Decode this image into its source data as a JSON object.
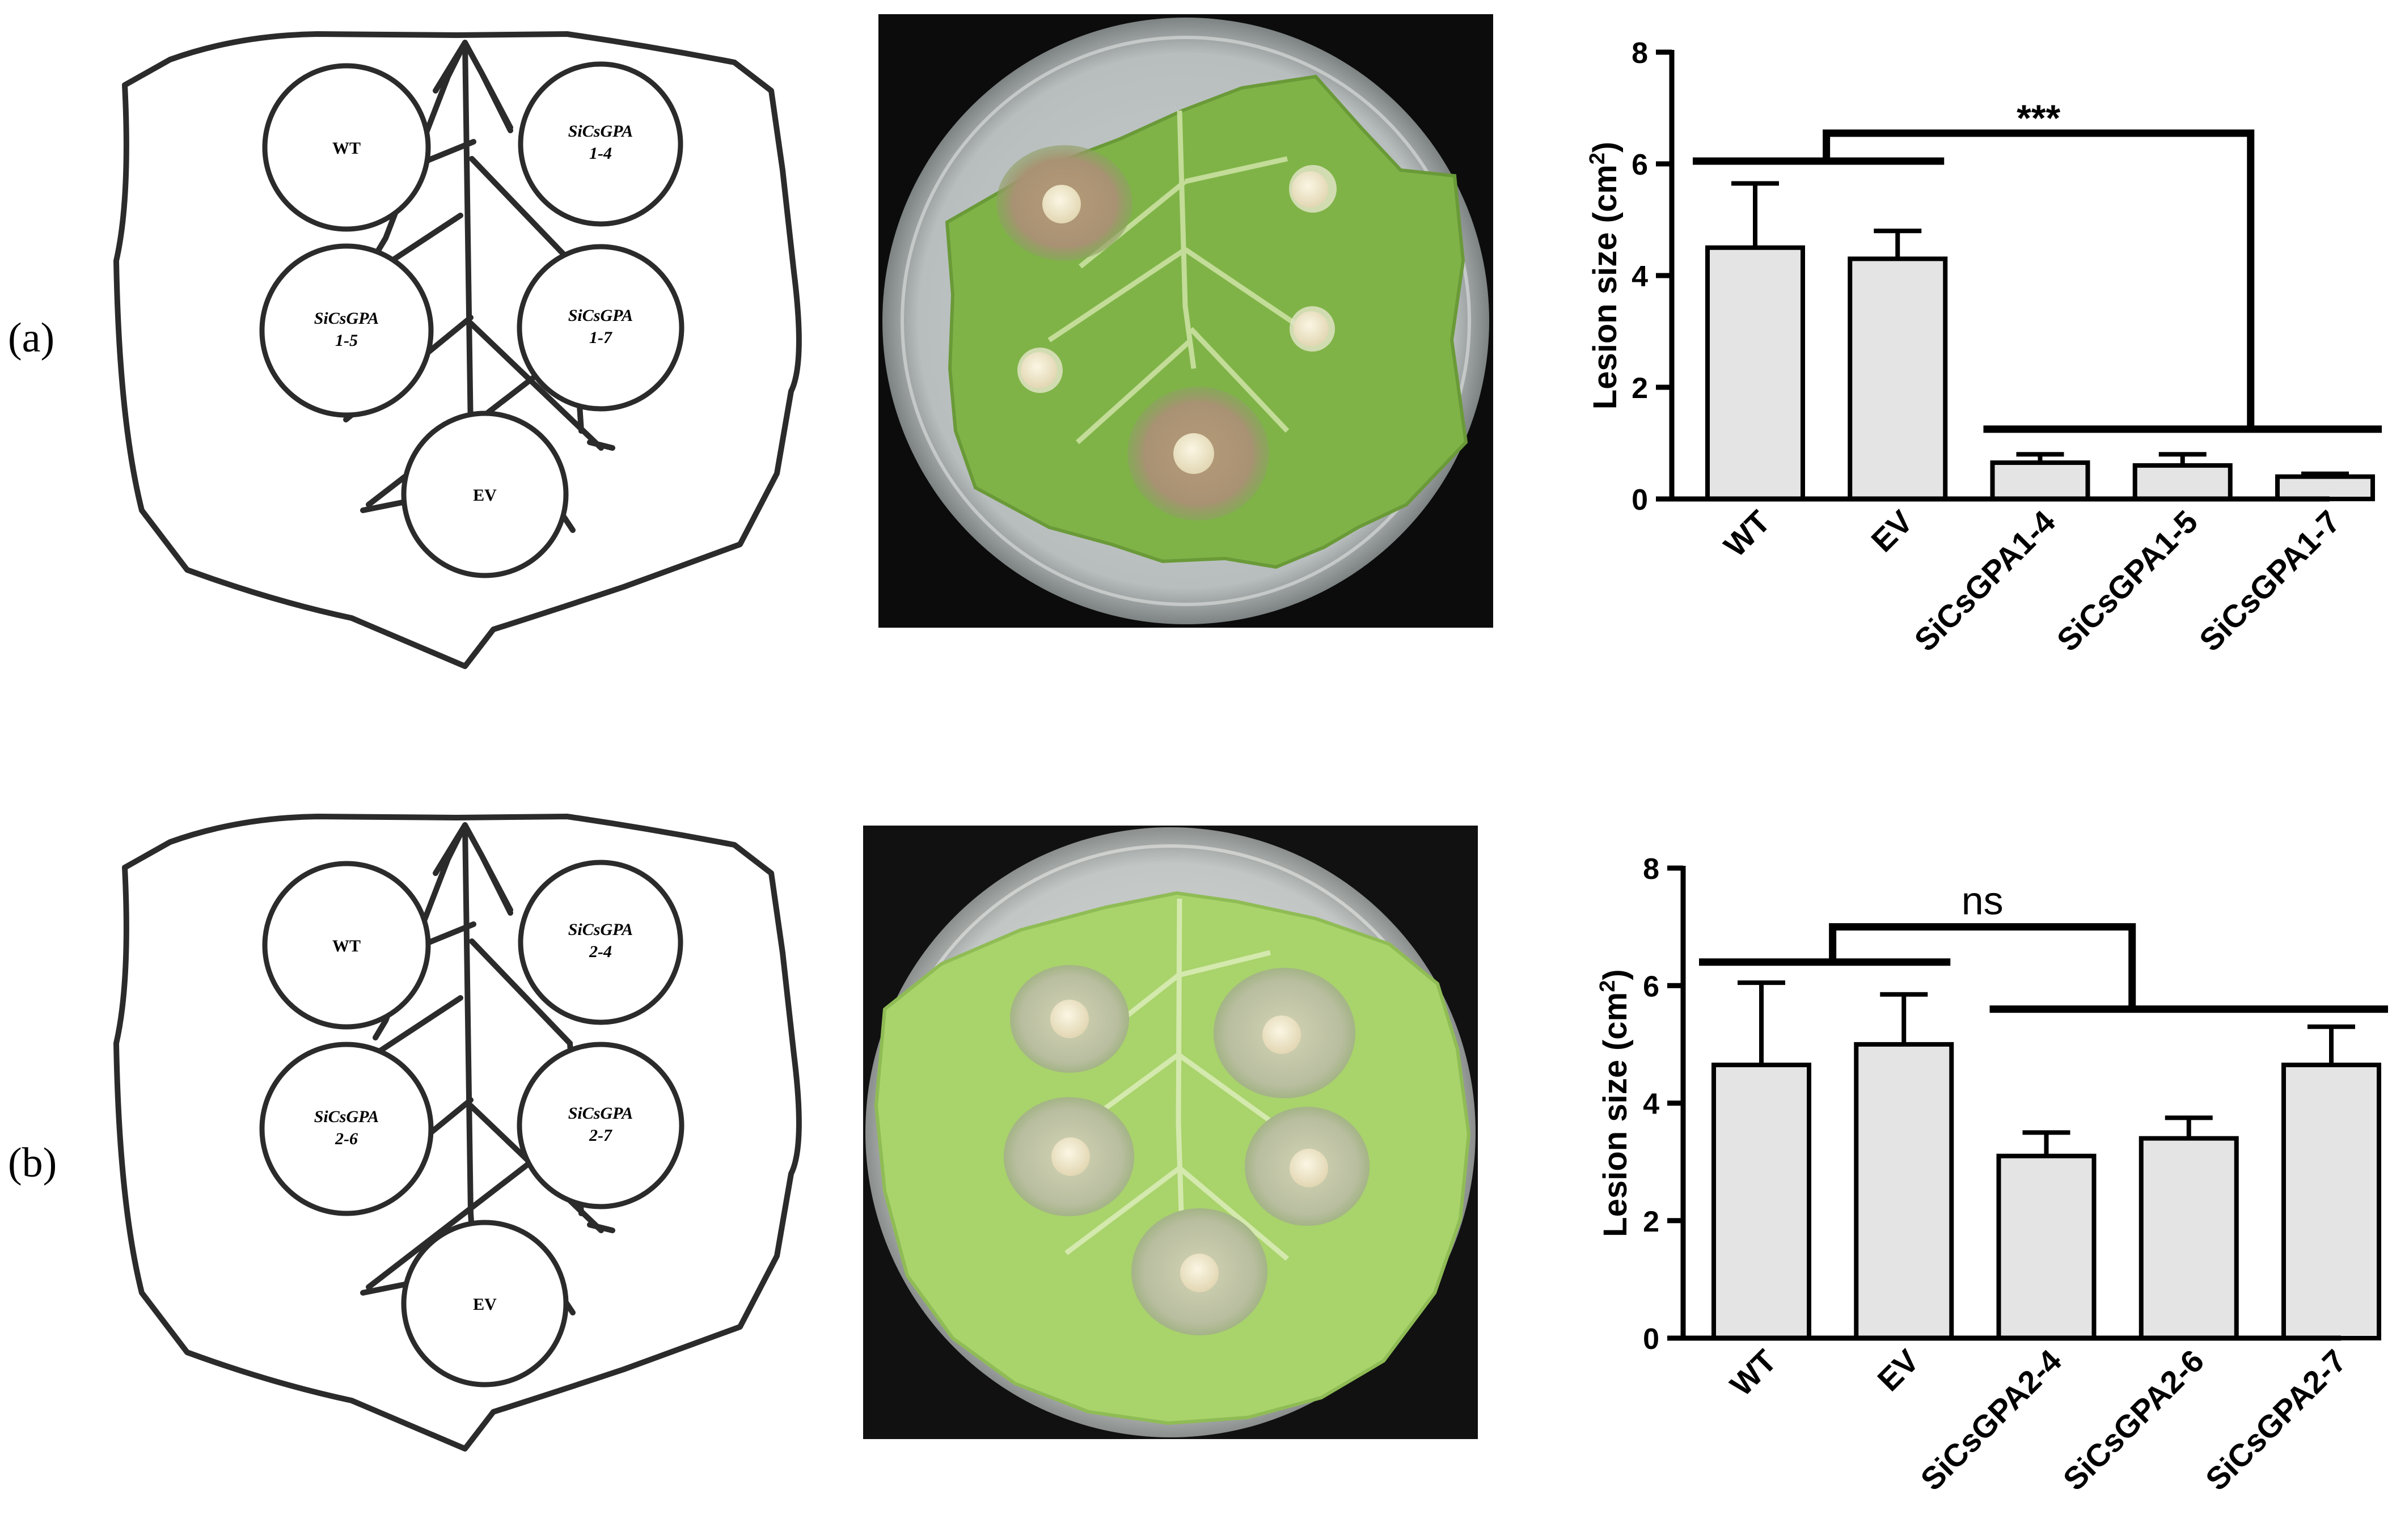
{
  "panels": [
    {
      "label": "(a)",
      "schematic": {
        "spots": [
          {
            "id": "wt",
            "line1": "WT",
            "line2": "",
            "italic": false
          },
          {
            "id": "gpa-top-right",
            "line1": "SiCsGPA",
            "line2": "1-4",
            "italic": true
          },
          {
            "id": "gpa-mid-left",
            "line1": "SiCsGPA",
            "line2": "1-5",
            "italic": true
          },
          {
            "id": "gpa-mid-right",
            "line1": "SiCsGPA",
            "line2": "1-7",
            "italic": true
          },
          {
            "id": "ev",
            "line1": "EV",
            "line2": "",
            "italic": false
          }
        ]
      },
      "photo": {
        "leaf_color": "#7fb347",
        "lesions": [
          {
            "spot": "upper-left",
            "lesion": true
          },
          {
            "spot": "upper-right",
            "lesion": false
          },
          {
            "spot": "middle-left",
            "lesion": false
          },
          {
            "spot": "middle-right",
            "lesion": false
          },
          {
            "spot": "bottom-center",
            "lesion": true
          }
        ]
      },
      "chart_data": {
        "type": "bar",
        "categories": [
          "WT",
          "EV",
          "SiCsGPA1-4",
          "SiCsGPA1-5",
          "SiCsGPA1-7"
        ],
        "values": [
          4.5,
          4.3,
          0.65,
          0.6,
          0.4
        ],
        "errors": [
          1.15,
          0.5,
          0.15,
          0.2,
          0.05
        ],
        "ylabel": "Lesion size (cm",
        "ylabel_sup": "2",
        "ylabel_end": ")",
        "ylim": [
          0,
          8
        ],
        "yticks": [
          "0",
          "2",
          "4",
          "6",
          "8"
        ],
        "bar_color": "#e3e4e3",
        "significance": {
          "label": "***",
          "left_group": [
            "WT",
            "EV"
          ],
          "right_group": [
            "SiCsGPA1-4",
            "SiCsGPA1-5",
            "SiCsGPA1-7"
          ],
          "left_bar_y": 6.05,
          "right_bar_y": 1.25,
          "top_y": 6.55
        }
      }
    },
    {
      "label": "(b)",
      "schematic": {
        "spots": [
          {
            "id": "wt",
            "line1": "WT",
            "line2": "",
            "italic": false
          },
          {
            "id": "gpa-top-right",
            "line1": "SiCsGPA",
            "line2": "2-4",
            "italic": true
          },
          {
            "id": "gpa-mid-left",
            "line1": "SiCsGPA",
            "line2": "2-6",
            "italic": true
          },
          {
            "id": "gpa-mid-right",
            "line1": "SiCsGPA",
            "line2": "2-7",
            "italic": true
          },
          {
            "id": "ev",
            "line1": "EV",
            "line2": "",
            "italic": false
          }
        ]
      },
      "photo": {
        "leaf_color": "#a9d36b",
        "lesions": [
          {
            "spot": "upper-left",
            "lesion": true
          },
          {
            "spot": "upper-right",
            "lesion": true
          },
          {
            "spot": "middle-left",
            "lesion": true
          },
          {
            "spot": "middle-right",
            "lesion": true
          },
          {
            "spot": "bottom-center",
            "lesion": true
          }
        ]
      },
      "chart_data": {
        "type": "bar",
        "categories": [
          "WT",
          "EV",
          "SiCsGPA2-4",
          "SiCsGPA2-6",
          "SiCsGPA2-7"
        ],
        "values": [
          4.65,
          5.0,
          3.1,
          3.4,
          4.65
        ],
        "errors": [
          1.4,
          0.85,
          0.4,
          0.35,
          0.65
        ],
        "ylabel": "Lesion size (cm",
        "ylabel_sup": "2",
        "ylabel_end": ")",
        "ylim": [
          0,
          8
        ],
        "yticks": [
          "0",
          "2",
          "4",
          "6",
          "8"
        ],
        "bar_color": "#e3e4e3",
        "significance": {
          "label": "ns",
          "left_group": [
            "WT",
            "EV"
          ],
          "right_group": [
            "SiCsGPA2-4",
            "SiCsGPA2-6",
            "SiCsGPA2-7"
          ],
          "left_bar_y": 6.4,
          "right_bar_y": 5.6,
          "top_y": 7.0
        }
      }
    }
  ]
}
